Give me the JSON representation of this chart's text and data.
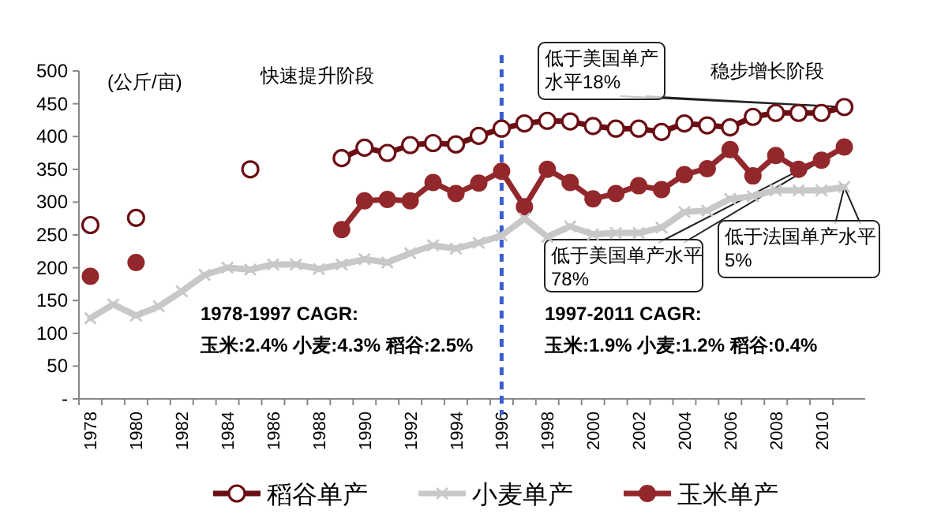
{
  "chart_data": {
    "type": "line",
    "categories": [
      "1978",
      null,
      "1980",
      null,
      "1982",
      null,
      "1984",
      null,
      "1986",
      null,
      "1988",
      null,
      "1990",
      null,
      "1992",
      null,
      "1994",
      null,
      "1996",
      null,
      "1998",
      null,
      "2000",
      null,
      "2002",
      null,
      "2004",
      null,
      "2006",
      null,
      "2008",
      null,
      "2010",
      null
    ],
    "ylim": [
      0,
      500
    ],
    "yticks": [
      {
        "value": 0,
        "label": "-"
      },
      50,
      100,
      150,
      200,
      250,
      300,
      350,
      400,
      450,
      500
    ],
    "grid": false,
    "legend": "bottom",
    "series": [
      {
        "name": "稻谷单产",
        "color": "#6b0f14",
        "marker": "circle",
        "values": [
          265,
          null,
          276,
          null,
          null,
          null,
          null,
          350,
          null,
          null,
          null,
          367,
          383,
          375,
          387,
          390,
          388,
          401,
          412,
          420,
          424,
          423,
          416,
          412,
          412,
          407,
          420,
          417,
          414,
          430,
          436,
          436,
          436,
          445
        ]
      },
      {
        "name": "小麦单产",
        "color": "#c8c8c8",
        "marker": "cross",
        "values": [
          123,
          144,
          127,
          141,
          164,
          189,
          200,
          197,
          205,
          205,
          198,
          205,
          213,
          208,
          222,
          234,
          229,
          238,
          249,
          275,
          247,
          263,
          251,
          253,
          253,
          261,
          285,
          287,
          305,
          309,
          318,
          318,
          318,
          323
        ]
      },
      {
        "name": "玉米单产",
        "color": "#93282c",
        "marker": "circle",
        "values": [
          187,
          null,
          208,
          null,
          null,
          null,
          null,
          null,
          null,
          null,
          null,
          258,
          302,
          304,
          302,
          330,
          313,
          329,
          347,
          293,
          350,
          330,
          305,
          313,
          325,
          319,
          342,
          351,
          380,
          340,
          371,
          350,
          364,
          384
        ]
      }
    ],
    "ref_lines": [
      {
        "axis": "x",
        "value": "1996",
        "color": "#3a5fcd",
        "line_style": "dashed"
      }
    ],
    "annotations": [
      "(公斤/亩)",
      "快速提升阶段",
      "稳步增长阶段",
      "低于美国单产",
      "水平18%",
      "低于美国单产水平",
      "78%",
      "低于法国单产水平",
      "5%",
      "1978-1997 CAGR:",
      "玉米:2.4% 小麦:4.3% 稻谷:2.5%",
      "1997-2011 CAGR:",
      "玉米:1.9% 小麦:1.2% 稻谷:0.4%"
    ]
  }
}
